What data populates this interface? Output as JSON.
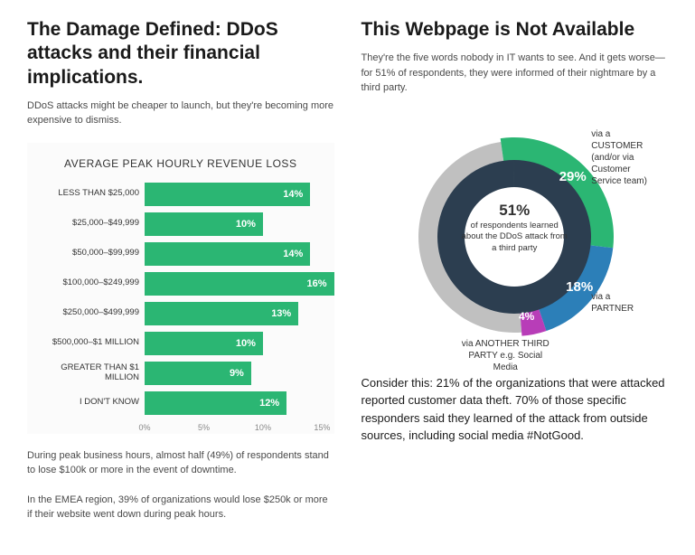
{
  "left": {
    "title": "The Damage Defined: DDoS attacks and their financial implications.",
    "sub": "DDoS attacks might be cheaper to launch, but they're becoming more expensive to dismiss.",
    "chart": {
      "type": "bar",
      "title": "AVERAGE PEAK HOURLY REVENUE LOSS",
      "bar_color": "#2bb673",
      "text_color": "#ffffff",
      "bg_color": "#fbfbfb",
      "xlim": [
        0,
        16
      ],
      "ticks": [
        "0%",
        "5%",
        "10%",
        "15%"
      ],
      "rows": [
        {
          "label": "LESS THAN $25,000",
          "value": 14,
          "display": "14%"
        },
        {
          "label": "$25,000–$49,999",
          "value": 10,
          "display": "10%"
        },
        {
          "label": "$50,000–$99,999",
          "value": 14,
          "display": "14%"
        },
        {
          "label": "$100,000–$249,999",
          "value": 16,
          "display": "16%"
        },
        {
          "label": "$250,000–$499,999",
          "value": 13,
          "display": "13%"
        },
        {
          "label": "$500,000–$1 MILLION",
          "value": 10,
          "display": "10%"
        },
        {
          "label": "GREATER THAN $1 MILLION",
          "value": 9,
          "display": "9%"
        },
        {
          "label": "I DON'T KNOW",
          "value": 12,
          "display": "12%"
        }
      ]
    },
    "foot1": "During peak business hours, almost half (49%) of respondents stand to lose $100k or more in the event of downtime.",
    "foot2": "In the EMEA region, 39% of organizations would lose $250k or more if their website went down during peak hours."
  },
  "right": {
    "title": "This Webpage is Not Available",
    "sub": "They're the five words nobody in IT wants to see. And it gets worse—for 51% of respondents, they were informed of their nightmare by a third party.",
    "donut": {
      "type": "pie",
      "total": 100,
      "background_arc_color": "#c0c0c0",
      "inner_ring_color": "#2c3e50",
      "center_bold": "51%",
      "center_text": "of respondents learned about the DDoS attack from a third party",
      "slices": [
        {
          "label": "via a CUSTOMER (and/or via Customer Service team)",
          "value": 29,
          "display": "29%",
          "color": "#2bb673"
        },
        {
          "label": "via a PARTNER",
          "value": 18,
          "display": "18%",
          "color": "#2c7fb8"
        },
        {
          "label": "via ANOTHER THIRD PARTY e.g. Social Media",
          "value": 4,
          "display": "4%",
          "color": "#b83db8"
        }
      ]
    },
    "closing": "Consider this: 21% of the organizations that were attacked reported customer data theft. 70% of those specific responders said they learned of the attack from outside sources, including social media #NotGood."
  }
}
